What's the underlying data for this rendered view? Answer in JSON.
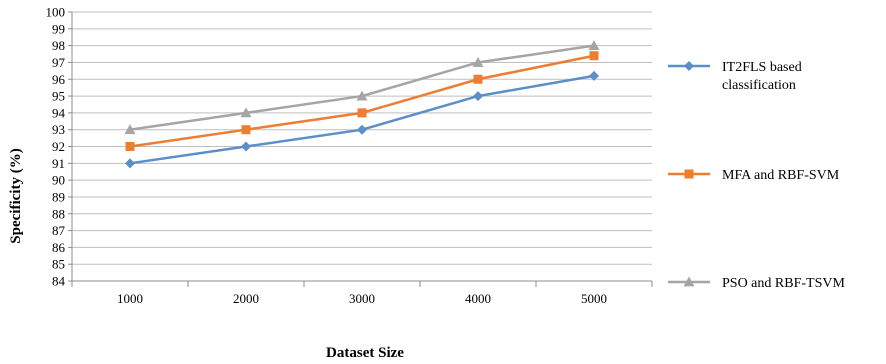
{
  "chart_data": {
    "type": "line",
    "title": "",
    "xlabel": "Dataset Size",
    "ylabel": "Specificity  (%)",
    "categories": [
      "1000",
      "2000",
      "3000",
      "4000",
      "5000"
    ],
    "ylim": [
      84,
      100
    ],
    "yticks": [
      "84",
      "85",
      "86",
      "87",
      "88",
      "89",
      "90",
      "91",
      "92",
      "93",
      "94",
      "95",
      "96",
      "97",
      "98",
      "99",
      "100"
    ],
    "grid": "horizontal",
    "legend_position": "right",
    "series": [
      {
        "name": "IT2FLS based classification",
        "legend_lines": [
          "IT2FLS based",
          "classification"
        ],
        "values": [
          91,
          92,
          93,
          95,
          96.2
        ],
        "color": "#5b8fc7",
        "marker": "diamond"
      },
      {
        "name": "MFA  and RBF-SVM",
        "legend_lines": [
          "MFA  and RBF-SVM"
        ],
        "values": [
          92,
          93,
          94,
          96,
          97.4
        ],
        "color": "#ed7d31",
        "marker": "square"
      },
      {
        "name": "PSO and RBF-TSVM",
        "legend_lines": [
          "PSO and RBF-TSVM"
        ],
        "values": [
          93,
          94,
          95,
          97,
          98
        ],
        "color": "#a5a5a5",
        "marker": "triangle"
      }
    ]
  }
}
